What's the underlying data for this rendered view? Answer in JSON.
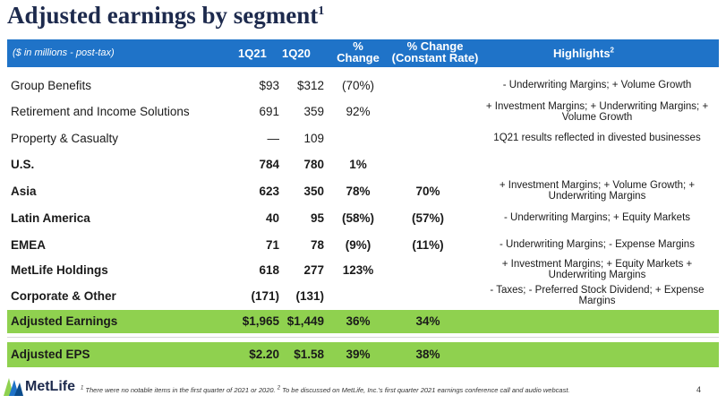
{
  "title": "Adjusted earnings by segment",
  "title_sup": "1",
  "header": {
    "label": "($ in millions - post-tax)",
    "q21": "1Q21",
    "q20": "1Q20",
    "pct_line1": "%",
    "pct_line2": "Change",
    "pctc_line1": "% Change",
    "pctc_line2": "(Constant Rate)",
    "highlights": "Highlights",
    "highlights_sup": "2"
  },
  "rows": [
    {
      "name": "Group Benefits",
      "q21": "$93",
      "q20": "$312",
      "pct": "(70%)",
      "pctc": "",
      "high": "- Underwriting Margins; + Volume Growth"
    },
    {
      "name": "Retirement and Income Solutions",
      "q21": "691",
      "q20": "359",
      "pct": "92%",
      "pctc": "",
      "high": "+ Investment Margins; + Underwriting Margins; + Volume Growth"
    },
    {
      "name": "Property & Casualty",
      "q21": "—",
      "q20": "109",
      "pct": "",
      "pctc": "",
      "high": "1Q21 results reflected in divested businesses"
    },
    {
      "name": "U.S.",
      "q21": "784",
      "q20": "780",
      "pct": "1%",
      "pctc": "",
      "high": ""
    },
    {
      "name": "Asia",
      "q21": "623",
      "q20": "350",
      "pct": "78%",
      "pctc": "70%",
      "high": "+ Investment Margins; + Volume Growth; + Underwriting Margins"
    },
    {
      "name": "Latin America",
      "q21": "40",
      "q20": "95",
      "pct": "(58%)",
      "pctc": "(57%)",
      "high": "- Underwriting Margins; + Equity Markets"
    },
    {
      "name": "EMEA",
      "q21": "71",
      "q20": "78",
      "pct": "(9%)",
      "pctc": "(11%)",
      "high": "- Underwriting Margins; - Expense Margins"
    },
    {
      "name": "MetLife Holdings",
      "q21": "618",
      "q20": "277",
      "pct": "123%",
      "pctc": "",
      "high": "+ Investment Margins; + Equity Markets + Underwriting Margins"
    },
    {
      "name": "Corporate & Other",
      "q21": "(171)",
      "q20": "(131)",
      "pct": "",
      "pctc": "",
      "high": "- Taxes; - Preferred Stock Dividend; + Expense Margins"
    },
    {
      "name": "Adjusted Earnings",
      "q21": "$1,965",
      "q20": "$1,449",
      "pct": "36%",
      "pctc": "34%",
      "high": ""
    },
    {
      "name": "Adjusted EPS",
      "q21": "$2.20",
      "q20": "$1.58",
      "pct": "39%",
      "pctc": "38%",
      "high": ""
    }
  ],
  "footer": {
    "logo": "MetLife",
    "sup1": "1",
    "note1": " There were no notable items in the first quarter of 2021 or 2020. ",
    "sup2": "2",
    "note2": " To be discussed on MetLife, Inc.'s first quarter 2021 earnings conference call and audio webcast.",
    "page": "4"
  },
  "colors": {
    "header_blue": "#1f73c8",
    "total_green": "#8fd14f",
    "title_navy": "#1d2a4d"
  }
}
